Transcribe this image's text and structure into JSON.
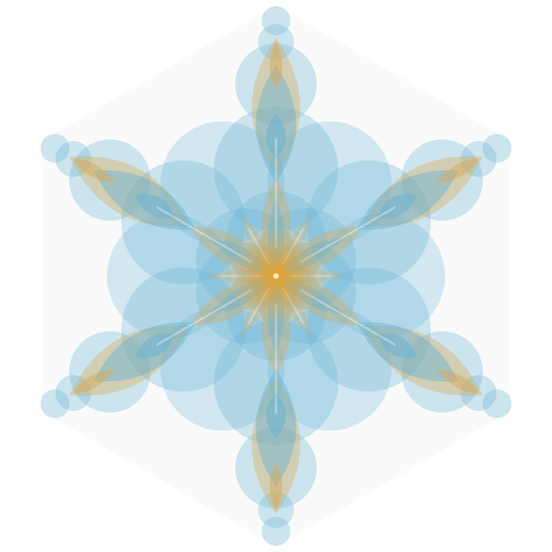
{
  "artwork": {
    "symmetry_order": 6,
    "colors": {
      "background": "#ffffff",
      "hexagon": "#fafafa",
      "circle_fill": "#6db6d8",
      "petal_blue": "#5fb0d6",
      "petal_gold": "#d9aa55",
      "glow_gold": "#f0a020",
      "center_dot": "#fff3dc"
    }
  }
}
